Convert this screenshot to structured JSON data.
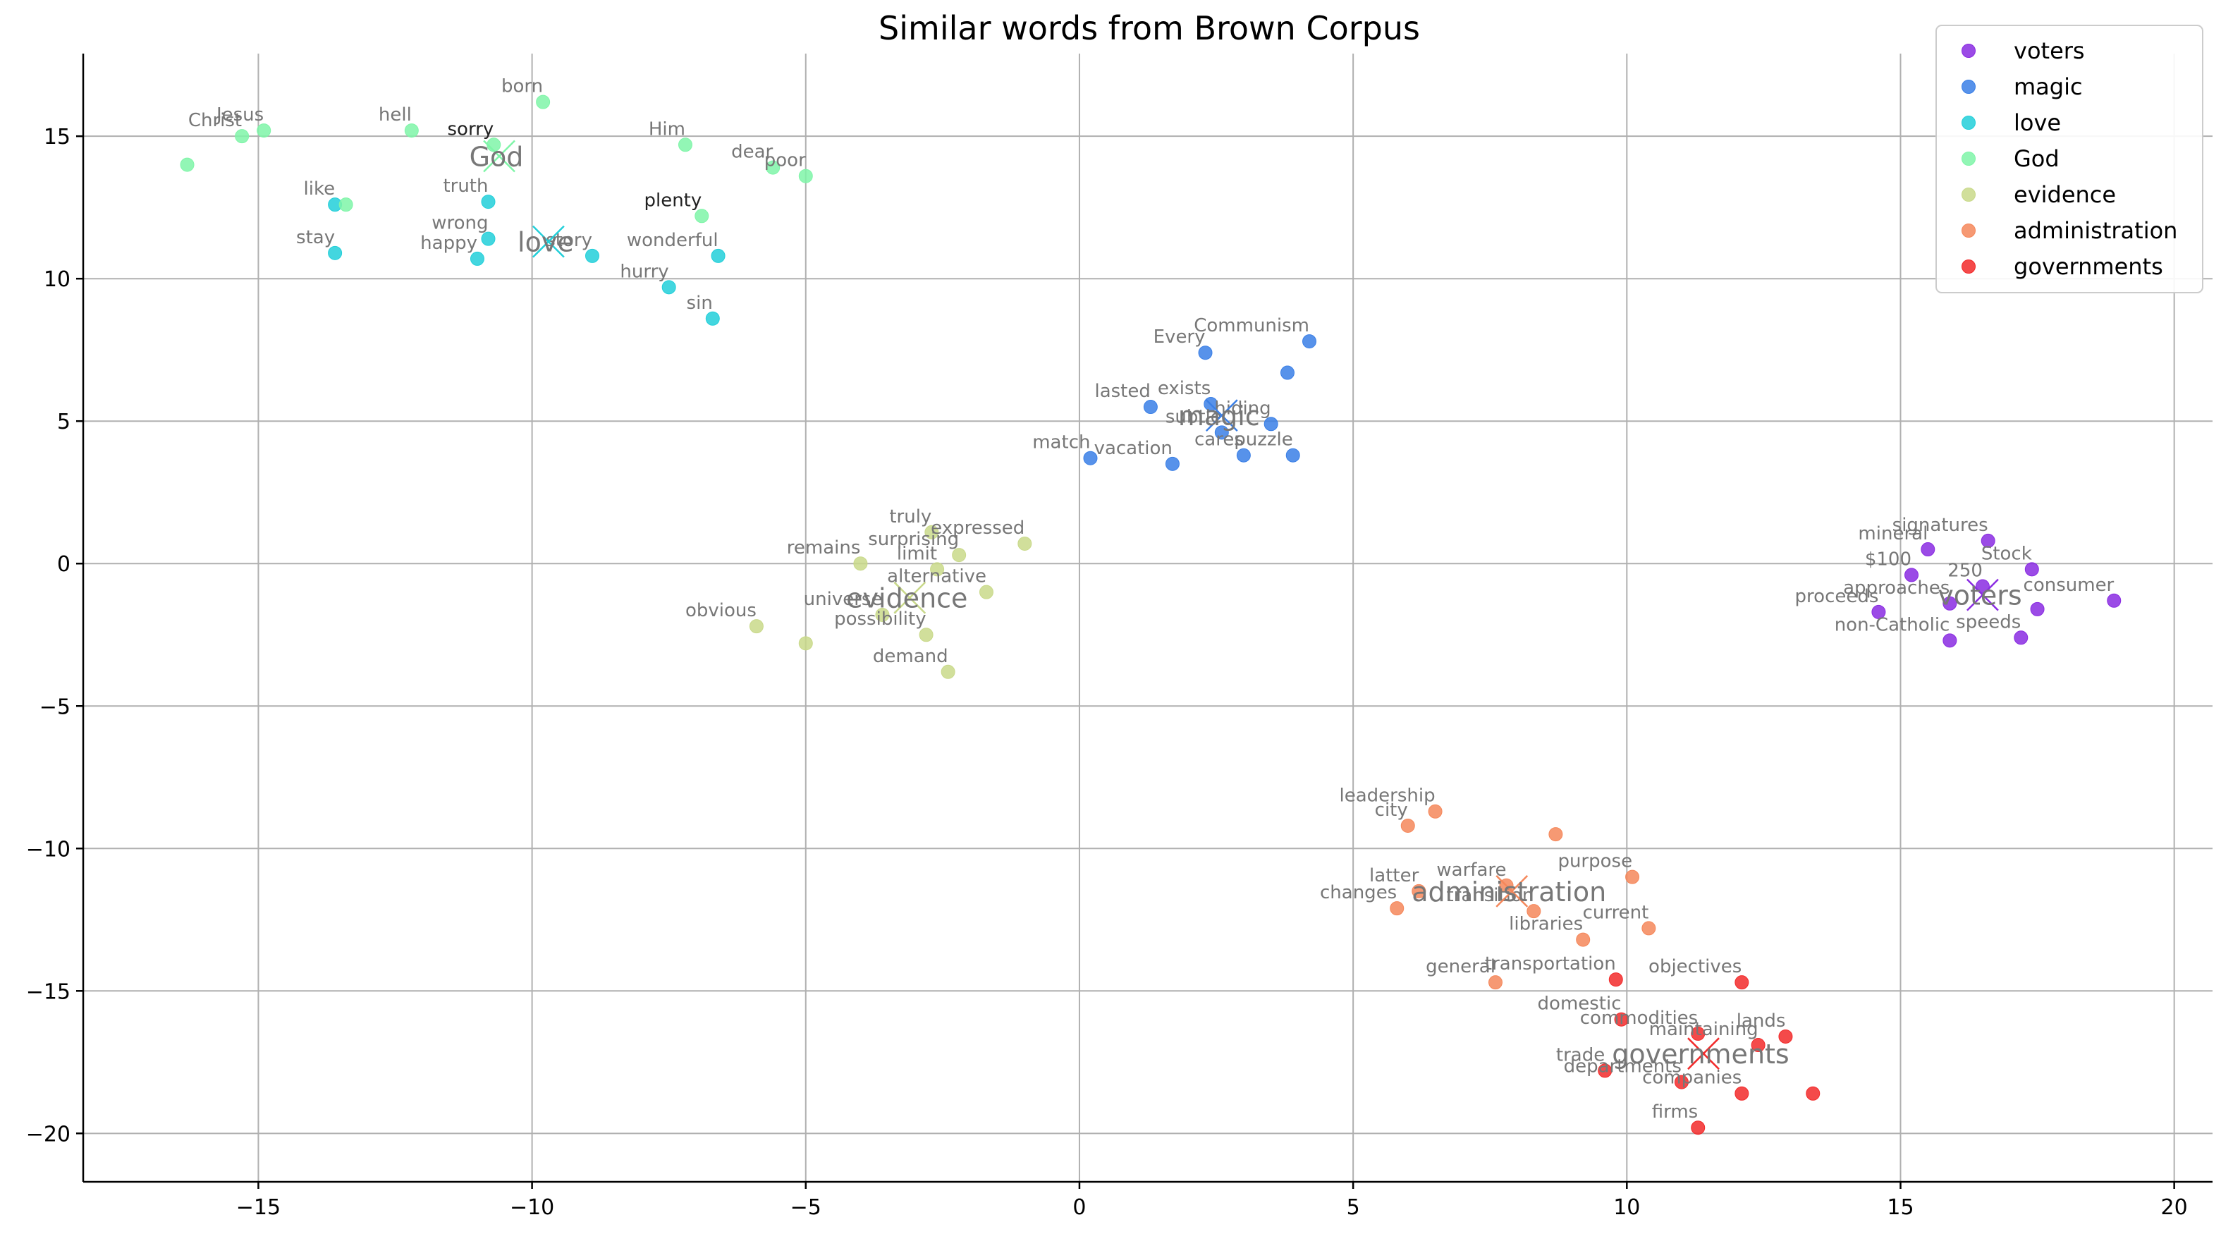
{
  "chart_data": {
    "type": "scatter",
    "title": "Similar words from Brown Corpus",
    "xlabel": "",
    "ylabel": "",
    "xlim": [
      -18.2,
      20.7
    ],
    "ylim": [
      -21.7,
      17.9
    ],
    "xticks": [
      -15,
      -10,
      -5,
      0,
      5,
      10,
      15,
      20
    ],
    "yticks": [
      15,
      10,
      5,
      0,
      -5,
      -10,
      -15,
      -20
    ],
    "grid": true,
    "legend_position": "top-right",
    "series": [
      {
        "name": "voters",
        "color": "#8a2be2",
        "centroid": {
          "label": "voters",
          "x": 16.5,
          "y": -1.1
        },
        "points": [
          {
            "label": "signatures",
            "x": 16.6,
            "y": 0.8
          },
          {
            "label": "mineral",
            "x": 15.5,
            "y": 0.5
          },
          {
            "label": "$100",
            "x": 15.2,
            "y": -0.4
          },
          {
            "label": "250",
            "x": 16.5,
            "y": -0.8
          },
          {
            "label": "Stock",
            "x": 17.4,
            "y": -0.2
          },
          {
            "label": "consumer",
            "x": 18.9,
            "y": -1.3
          },
          {
            "label": "approaches",
            "x": 15.9,
            "y": -1.4
          },
          {
            "label": "proceeds",
            "x": 14.6,
            "y": -1.7
          },
          {
            "label": "speeds",
            "x": 17.2,
            "y": -2.6
          },
          {
            "label": "non-Catholic",
            "x": 15.9,
            "y": -2.7
          },
          {
            "label": "",
            "x": 17.5,
            "y": -1.6
          }
        ]
      },
      {
        "name": "magic",
        "color": "#3a7fe6",
        "centroid": {
          "label": "magic",
          "x": 2.6,
          "y": 5.2
        },
        "points": [
          {
            "label": "Communism",
            "x": 4.2,
            "y": 7.8
          },
          {
            "label": "Every",
            "x": 2.3,
            "y": 7.4
          },
          {
            "label": "",
            "x": 3.8,
            "y": 6.7
          },
          {
            "label": "lasted",
            "x": 1.3,
            "y": 5.5
          },
          {
            "label": "exists",
            "x": 2.4,
            "y": 5.6
          },
          {
            "label": "hiding",
            "x": 3.5,
            "y": 4.9
          },
          {
            "label": "subtle",
            "x": 2.6,
            "y": 4.6
          },
          {
            "label": "cares",
            "x": 3.0,
            "y": 3.8
          },
          {
            "label": "puzzle",
            "x": 3.9,
            "y": 3.8
          },
          {
            "label": "match",
            "x": 0.2,
            "y": 3.7
          },
          {
            "label": "vacation",
            "x": 1.7,
            "y": 3.5
          }
        ]
      },
      {
        "name": "love",
        "color": "#22cfd9",
        "centroid": {
          "label": "love",
          "x": -9.7,
          "y": 11.3
        },
        "points": [
          {
            "label": "like",
            "x": -13.6,
            "y": 12.6
          },
          {
            "label": "truth",
            "x": -10.8,
            "y": 12.7
          },
          {
            "label": "wrong",
            "x": -10.8,
            "y": 11.4
          },
          {
            "label": "happy",
            "x": -11.0,
            "y": 10.7
          },
          {
            "label": "story",
            "x": -8.9,
            "y": 10.8
          },
          {
            "label": "stay",
            "x": -13.6,
            "y": 10.9
          },
          {
            "label": "wonderful",
            "x": -6.6,
            "y": 10.8
          },
          {
            "label": "hurry",
            "x": -7.5,
            "y": 9.7
          },
          {
            "label": "sin",
            "x": -6.7,
            "y": 8.6
          }
        ]
      },
      {
        "name": "God",
        "color": "#7ff5a8",
        "centroid": {
          "label": "God",
          "x": -10.6,
          "y": 14.3
        },
        "points": [
          {
            "label": "Jesus",
            "x": -14.9,
            "y": 15.2
          },
          {
            "label": "Christ",
            "x": -15.3,
            "y": 15.0
          },
          {
            "label": "hell",
            "x": -12.2,
            "y": 15.2
          },
          {
            "label": "born",
            "x": -9.8,
            "y": 16.2
          },
          {
            "label": "sorry",
            "x": -10.7,
            "y": 14.7
          },
          {
            "label": "Him",
            "x": -7.2,
            "y": 14.7
          },
          {
            "label": "dear",
            "x": -5.6,
            "y": 13.9
          },
          {
            "label": "poor",
            "x": -5.0,
            "y": 13.6
          },
          {
            "label": "plenty",
            "x": -6.9,
            "y": 12.2
          },
          {
            "label": "",
            "x": -16.3,
            "y": 14.0
          },
          {
            "label": "",
            "x": -13.4,
            "y": 12.6
          }
        ]
      },
      {
        "name": "evidence",
        "color": "#c9d98a",
        "centroid": {
          "label": "evidence",
          "x": -3.1,
          "y": -1.2
        },
        "points": [
          {
            "label": "truly",
            "x": -2.7,
            "y": 1.1
          },
          {
            "label": "expressed",
            "x": -1.0,
            "y": 0.7
          },
          {
            "label": "surprising",
            "x": -2.2,
            "y": 0.3
          },
          {
            "label": "remains",
            "x": -4.0,
            "y": 0.0
          },
          {
            "label": "limit",
            "x": -2.6,
            "y": -0.2
          },
          {
            "label": "alternative",
            "x": -1.7,
            "y": -1.0
          },
          {
            "label": "universe",
            "x": -3.6,
            "y": -1.8
          },
          {
            "label": "obvious",
            "x": -5.9,
            "y": -2.2
          },
          {
            "label": "possibility",
            "x": -2.8,
            "y": -2.5
          },
          {
            "label": "",
            "x": -5.0,
            "y": -2.8
          },
          {
            "label": "demand",
            "x": -2.4,
            "y": -3.8
          }
        ]
      },
      {
        "name": "administration",
        "color": "#f5875a",
        "centroid": {
          "label": "administration",
          "x": 7.9,
          "y": -11.5
        },
        "points": [
          {
            "label": "leadership",
            "x": 6.5,
            "y": -8.7
          },
          {
            "label": "city",
            "x": 6.0,
            "y": -9.2
          },
          {
            "label": "",
            "x": 8.7,
            "y": -9.5
          },
          {
            "label": "purpose",
            "x": 10.1,
            "y": -11.0
          },
          {
            "label": "latter",
            "x": 6.2,
            "y": -11.5
          },
          {
            "label": "warfare",
            "x": 7.8,
            "y": -11.3
          },
          {
            "label": "transition",
            "x": 8.3,
            "y": -12.2
          },
          {
            "label": "changes",
            "x": 5.8,
            "y": -12.1
          },
          {
            "label": "current",
            "x": 10.4,
            "y": -12.8
          },
          {
            "label": "libraries",
            "x": 9.2,
            "y": -13.2
          },
          {
            "label": "general",
            "x": 7.6,
            "y": -14.7
          }
        ]
      },
      {
        "name": "governments",
        "color": "#f22a2a",
        "centroid": {
          "label": "governments",
          "x": 11.4,
          "y": -17.2
        },
        "points": [
          {
            "label": "transportation",
            "x": 9.8,
            "y": -14.6
          },
          {
            "label": "objectives",
            "x": 12.1,
            "y": -14.7
          },
          {
            "label": "domestic",
            "x": 9.9,
            "y": -16.0
          },
          {
            "label": "commodities",
            "x": 11.3,
            "y": -16.5
          },
          {
            "label": "maintaining",
            "x": 12.4,
            "y": -16.9
          },
          {
            "label": "lands",
            "x": 12.9,
            "y": -16.6
          },
          {
            "label": "trade",
            "x": 9.6,
            "y": -17.8
          },
          {
            "label": "departments",
            "x": 11.0,
            "y": -18.2
          },
          {
            "label": "companies",
            "x": 12.1,
            "y": -18.6
          },
          {
            "label": "",
            "x": 13.4,
            "y": -18.6
          },
          {
            "label": "firms",
            "x": 11.3,
            "y": -19.8
          }
        ]
      }
    ]
  }
}
